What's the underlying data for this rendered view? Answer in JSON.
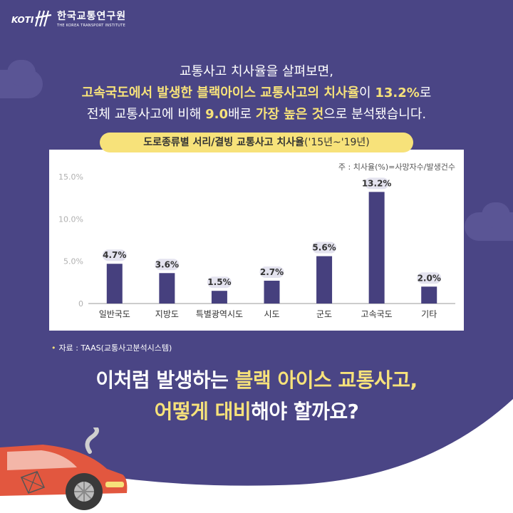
{
  "logo": {
    "name_ko": "한국교통연구원",
    "name_en": "THE KOREA TRANSPORT INSTITUTE",
    "mark_text": "KOTI"
  },
  "intro": {
    "line1": "교통사고 치사율을 살펴보면,",
    "line2_hl": "고속국도에서 발생한 블랙아이스 교통사고의 치사율",
    "line2_mid": "이 ",
    "line2_value": "13.2%",
    "line2_end": "로",
    "line3_pre": "전체 교통사고에 비해 ",
    "line3_value": "9.0",
    "line3_mid": "배로 ",
    "line3_hl": "가장 높은 것",
    "line3_end": "으로 분석됐습니다."
  },
  "chart_title": {
    "main": "도로종류별 서리/결빙 교통사고 치사율",
    "period": "('15년~'19년)"
  },
  "chart_note": "주 : 치사율(%)=사망자수/발생건수",
  "chart_data": {
    "type": "bar",
    "title": "도로종류별 서리/결빙 교통사고 치사율('15년~'19년)",
    "categories": [
      "일반국도",
      "지방도",
      "특별광역시도",
      "시도",
      "군도",
      "고속국도",
      "기타"
    ],
    "values": [
      4.7,
      3.6,
      1.5,
      2.7,
      5.6,
      13.2,
      2.0
    ],
    "value_labels": [
      "4.7%",
      "3.6%",
      "1.5%",
      "2.7%",
      "5.6%",
      "13.2%",
      "2.0%"
    ],
    "yticks": [
      0,
      5,
      10,
      15
    ],
    "ytick_labels": [
      "0",
      "5.0%",
      "10.0%",
      "15.0%"
    ],
    "ylim": [
      0,
      15
    ],
    "grid": false,
    "xlabel": "",
    "ylabel": ""
  },
  "source": {
    "bullet": "•",
    "text": "자료 : TAAS(교통사고분석시스템)"
  },
  "headline": {
    "l1_pre": "이처럼 발생하는 ",
    "l1_hl": "블랙 아이스 교통사고,",
    "l2_hl": "어떻게 대비",
    "l2_end": "해야 할까요?"
  },
  "colors": {
    "background": "#4a4585",
    "bar": "#46407e",
    "highlight": "#f7e27a",
    "car": "#e2573f"
  }
}
